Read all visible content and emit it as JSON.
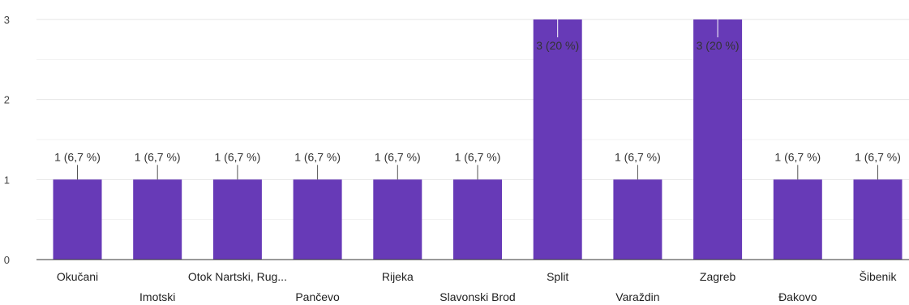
{
  "chart_data": {
    "type": "bar",
    "categories": [
      "Okučani",
      "Imotski",
      "Otok Nartski, Rug...",
      "Pančevo",
      "Rijeka",
      "Slavonski Brod",
      "Split",
      "Varaždin",
      "Zagreb",
      "Đakovo",
      "Šibenik"
    ],
    "values": [
      1,
      1,
      1,
      1,
      1,
      1,
      3,
      1,
      3,
      1,
      1
    ],
    "data_labels": [
      "1 (6,7 %)",
      "1 (6,7 %)",
      "1 (6,7 %)",
      "1 (6,7 %)",
      "1 (6,7 %)",
      "1 (6,7 %)",
      "3 (20 %)",
      "1 (6,7 %)",
      "3 (20 %)",
      "1 (6,7 %)",
      "1 (6,7 %)"
    ],
    "yticks": [
      "0",
      "1",
      "2",
      "3"
    ],
    "ylim": [
      0,
      3
    ],
    "grid": true,
    "bar_color": "#673ab7",
    "title": "",
    "xlabel": "",
    "ylabel": ""
  }
}
